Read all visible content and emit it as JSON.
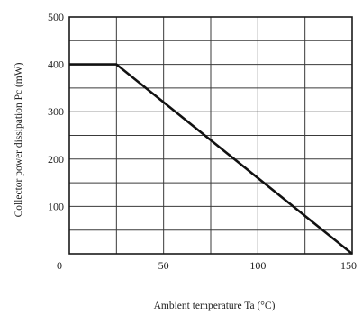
{
  "chart_data": {
    "type": "line",
    "title": "",
    "xlabel": "Ambient temperature Ta (°C)",
    "ylabel": "Collector power dissipation Pc (mW)",
    "xlim": [
      0,
      150
    ],
    "ylim": [
      0,
      500
    ],
    "x_ticks": [
      0,
      50,
      100,
      150
    ],
    "x_tick_labels": [
      "0",
      "50",
      "100",
      "150"
    ],
    "y_ticks": [
      0,
      100,
      200,
      300,
      400,
      500
    ],
    "y_tick_labels": [
      "",
      "100",
      "200",
      "300",
      "400",
      "500"
    ],
    "grid": true,
    "grid_x_step": 25,
    "grid_y_step": 50,
    "series": [
      {
        "x": [
          0,
          25,
          150
        ],
        "y": [
          400,
          400,
          0
        ]
      }
    ]
  }
}
